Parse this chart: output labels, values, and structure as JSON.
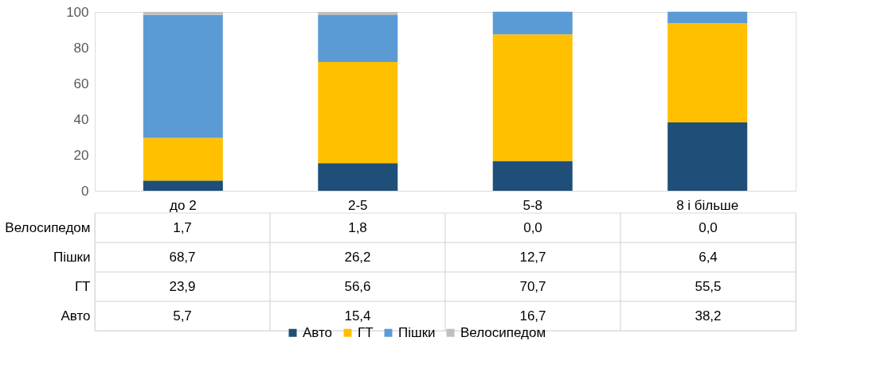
{
  "chart_data": {
    "type": "bar",
    "stacked": true,
    "categories": [
      "до 2",
      "2-5",
      "5-8",
      "8 і більше"
    ],
    "series": [
      {
        "name": "Авто",
        "color": "#1f4e79",
        "values": [
          5.7,
          15.4,
          16.7,
          38.2
        ],
        "value_labels": [
          "5,7",
          "15,4",
          "16,7",
          "38,2"
        ]
      },
      {
        "name": "ГТ",
        "color": "#ffc000",
        "values": [
          23.9,
          56.6,
          70.7,
          55.5
        ],
        "value_labels": [
          "23,9",
          "56,6",
          "70,7",
          "55,5"
        ]
      },
      {
        "name": "Пішки",
        "color": "#5b9bd5",
        "values": [
          68.7,
          26.2,
          12.7,
          6.4
        ],
        "value_labels": [
          "68,7",
          "26,2",
          "12,7",
          "6,4"
        ]
      },
      {
        "name": "Велосипедом",
        "color": "#bfbfbf",
        "values": [
          1.7,
          1.8,
          0.0,
          0.0
        ],
        "value_labels": [
          "1,7",
          "1,8",
          "0,0",
          "0,0"
        ]
      }
    ],
    "ylim": [
      0,
      100
    ],
    "yticks": [
      0,
      20,
      40,
      60,
      80,
      100
    ],
    "grid": false,
    "legend": "bottom"
  }
}
